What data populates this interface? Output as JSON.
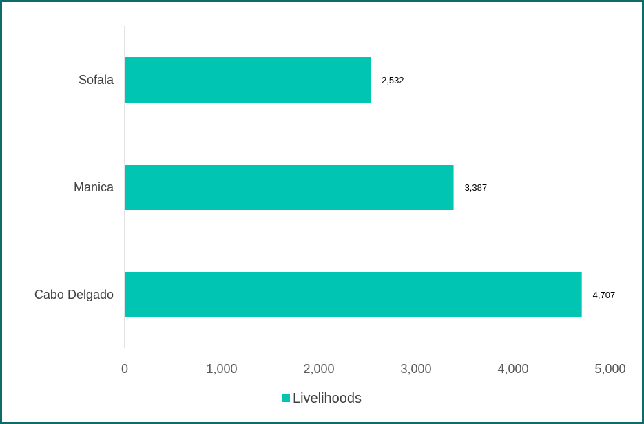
{
  "chart_data": {
    "type": "bar",
    "orientation": "horizontal",
    "categories": [
      "Sofala",
      "Manica",
      "Cabo Delgado"
    ],
    "series": [
      {
        "name": "Livelihoods",
        "values": [
          2532,
          3387,
          4707
        ],
        "color": "#00c5b2"
      }
    ],
    "data_labels": [
      "2,532",
      "3,387",
      "4,707"
    ],
    "x_ticks": [
      0,
      1000,
      2000,
      3000,
      4000,
      5000
    ],
    "x_tick_labels": [
      "0",
      "1,000",
      "2,000",
      "3,000",
      "4,000",
      "5,000"
    ],
    "xlim": [
      0,
      5000
    ],
    "title": "",
    "xlabel": "",
    "ylabel": "",
    "grid": false,
    "legend_position": "bottom"
  },
  "legend": {
    "label": "Livelihoods",
    "color": "#00c5b2"
  },
  "colors": {
    "frame_border": "#0e6b6b",
    "axis_line": "#d9d9d9"
  }
}
